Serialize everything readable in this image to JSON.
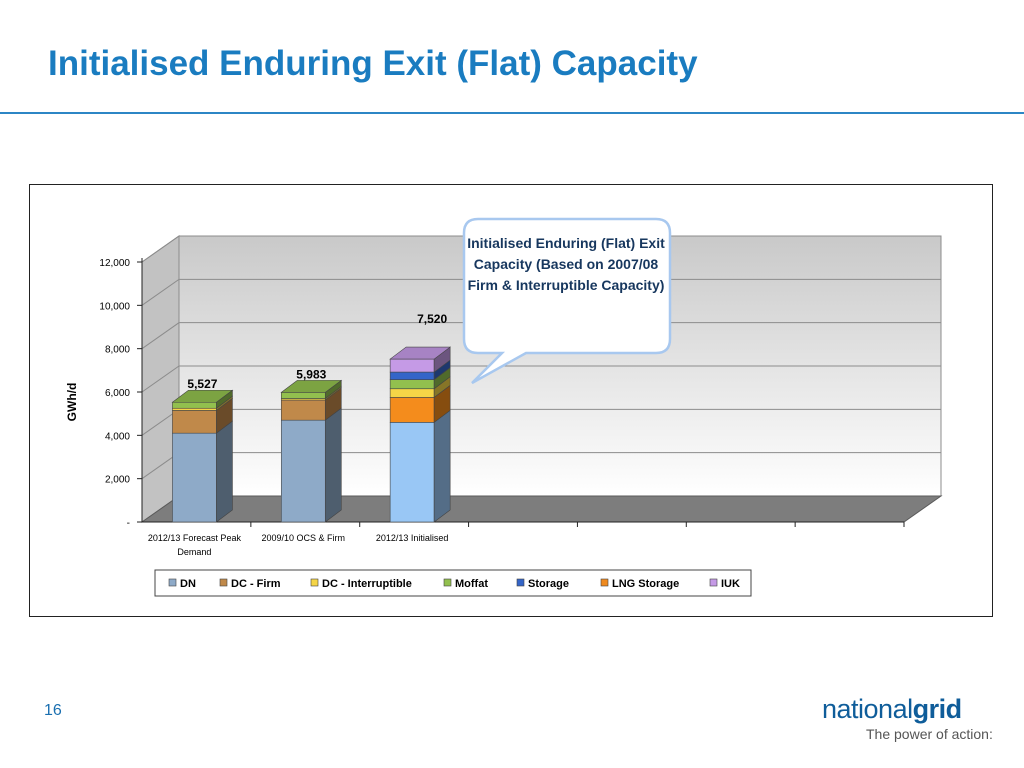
{
  "slide": {
    "title": "Initialised Enduring Exit (Flat) Capacity",
    "page_number": "16",
    "logo": {
      "prefix": "national",
      "bold": "grid",
      "tagline": "The power of action:"
    }
  },
  "callout": {
    "text": "Initialised Enduring (Flat) Exit Capacity (Based on 2007/08 Firm & Interruptible Capacity)"
  },
  "chart_data": {
    "type": "bar",
    "stacked": true,
    "three_d": true,
    "categories": [
      "2012/13 Forecast Peak Demand",
      "2009/10 OCS & Firm",
      "2012/13 Initialised"
    ],
    "category_lines": [
      [
        "2012/13 Forecast Peak",
        "Demand"
      ],
      [
        "2009/10 OCS & Firm"
      ],
      [
        "2012/13 Initialised"
      ]
    ],
    "totals": [
      5527,
      5983,
      7520
    ],
    "total_labels": [
      "5,527",
      "5,983",
      "7,520"
    ],
    "series": [
      {
        "name": "DN",
        "values": [
          4100,
          4700,
          4600
        ],
        "color": "#8eaac8"
      },
      {
        "name": "DC - Firm",
        "values": [
          1050,
          930,
          1150
        ],
        "color": "#c0894a"
      },
      {
        "name": "DC - Interruptible",
        "values": [
          100,
          70,
          400
        ],
        "color": "#f5d547"
      },
      {
        "name": "Moffat",
        "values": [
          277,
          283,
          420
        ],
        "color": "#92c04e"
      },
      {
        "name": "Storage",
        "values": [
          0,
          0,
          350
        ],
        "color": "#3465c8"
      },
      {
        "name": "LNG Storage",
        "values": [
          0,
          0,
          0
        ],
        "color": "#ef8a1f"
      },
      {
        "name": "IUK",
        "values": [
          0,
          0,
          600
        ],
        "color": "#c59ae6"
      }
    ],
    "bar_overrides": [
      {},
      {},
      {
        "DN": "#99c7f5",
        "DC - Firm": "#f48c1c"
      }
    ],
    "ylabel": "GWh/d",
    "ylim": [
      0,
      12000
    ],
    "yticks": [
      0,
      2000,
      4000,
      6000,
      8000,
      10000,
      12000
    ],
    "ytick_labels": [
      "-",
      "2,000",
      "4,000",
      "6,000",
      "8,000",
      "10,000",
      "12,000"
    ],
    "grid": true,
    "legend_position": "bottom",
    "slot_count": 7,
    "title": ""
  }
}
